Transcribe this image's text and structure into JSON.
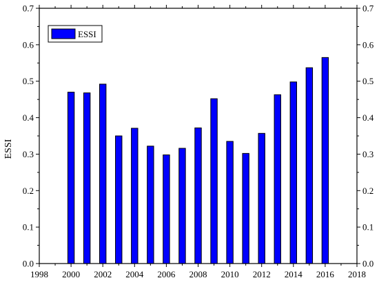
{
  "chart_data": {
    "type": "bar",
    "x": [
      2000,
      2001,
      2002,
      2003,
      2004,
      2005,
      2006,
      2007,
      2008,
      2009,
      2010,
      2011,
      2012,
      2013,
      2014,
      2015,
      2016
    ],
    "series": [
      {
        "name": "ESSI",
        "values": [
          0.47,
          0.468,
          0.492,
          0.35,
          0.371,
          0.322,
          0.298,
          0.316,
          0.372,
          0.452,
          0.335,
          0.302,
          0.357,
          0.463,
          0.498,
          0.537,
          0.565
        ]
      }
    ],
    "title": "",
    "xlabel": "",
    "ylabel": "ESSI",
    "xlim": [
      1998,
      2018
    ],
    "ylim": [
      0,
      0.7
    ],
    "x_ticks": [
      "1998",
      "2000",
      "2002",
      "2004",
      "2006",
      "2008",
      "2010",
      "2012",
      "2014",
      "2016",
      "2018"
    ],
    "y_ticks": [
      "0.0",
      "0.1",
      "0.2",
      "0.3",
      "0.4",
      "0.5",
      "0.6",
      "0.7"
    ],
    "grid": false,
    "mirrored_right_axis": true,
    "legend": {
      "position": "top-left"
    },
    "colors": {
      "bar_fill": "#0000ff",
      "bar_stroke": "#000000",
      "axis": "#000000"
    }
  }
}
